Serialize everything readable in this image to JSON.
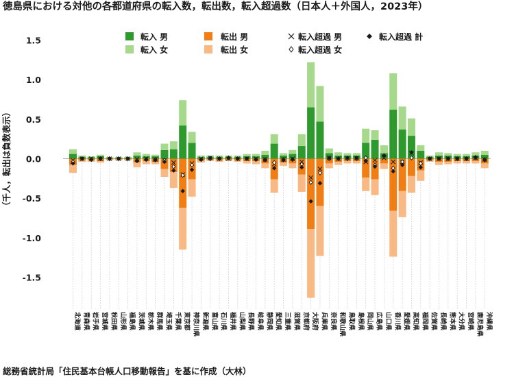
{
  "chart_data": {
    "type": "bar",
    "title": "徳島県における対他の各都道府県の転入数，転出数，転入超過数（日本人＋外国人，2023年）",
    "ylabel": "（千人，転出は負数表示）",
    "source": "総務省統計局「住民基本台帳人口移動報告」を基に作成（大林）",
    "ylim": [
      -1.75,
      1.55
    ],
    "yticks": [
      1.5,
      1.0,
      0.5,
      0.0,
      -0.5,
      -1.0,
      -1.5
    ],
    "ytick_labels": [
      "1.5",
      "1.0",
      "0.5",
      "0.0",
      "-0.5",
      "-1.0",
      "-1.5"
    ],
    "legend": {
      "in_male": "転入 男",
      "in_female": "転入 女",
      "out_male": "転出 男",
      "out_female": "転出 女",
      "net_male": "転入超過 男",
      "net_female": "転入超過 女",
      "net_total": "転入超過 計"
    },
    "colors": {
      "in_male": "#2e9a2e",
      "in_female": "#a6d98c",
      "out_male": "#f07e14",
      "out_female": "#f8b984",
      "zero_line": "#b0b0b0",
      "grid": "#c8c8c8"
    },
    "categories": [
      "北海道",
      "青森県",
      "岩手県",
      "宮城県",
      "秋田県",
      "山形県",
      "福島県",
      "茨城県",
      "栃木県",
      "群馬県",
      "埼玉県",
      "千葉県",
      "東京都",
      "神奈川県",
      "新潟県",
      "富山県",
      "石川県",
      "福井県",
      "山梨県",
      "長野県",
      "岐阜県",
      "静岡県",
      "愛知県",
      "三重県",
      "滋賀県",
      "京都府",
      "大阪府",
      "兵庫県",
      "奈良県",
      "和歌山県",
      "鳥取県",
      "島根県",
      "岡山県",
      "広島県",
      "山口県",
      "香川県",
      "愛媛県",
      "高知県",
      "福岡県",
      "佐賀県",
      "長崎県",
      "熊本県",
      "大分県",
      "宮崎県",
      "鹿児島県",
      "沖縄県"
    ],
    "series": [
      {
        "name": "転入 男",
        "values": [
          0.06,
          0.02,
          0.02,
          0.03,
          0.01,
          0.01,
          0.01,
          0.04,
          0.03,
          0.03,
          0.11,
          0.12,
          0.42,
          0.2,
          0.02,
          0.02,
          0.02,
          0.02,
          0.02,
          0.03,
          0.03,
          0.05,
          0.19,
          0.04,
          0.06,
          0.16,
          0.65,
          0.47,
          0.07,
          0.04,
          0.04,
          0.04,
          0.2,
          0.24,
          0.07,
          0.62,
          0.37,
          0.29,
          0.1,
          0.02,
          0.04,
          0.04,
          0.03,
          0.03,
          0.04,
          0.05
        ]
      },
      {
        "name": "転入 女",
        "values": [
          0.06,
          0.02,
          0.01,
          0.02,
          0.01,
          0.01,
          0.01,
          0.04,
          0.03,
          0.02,
          0.08,
          0.1,
          0.32,
          0.14,
          0.02,
          0.02,
          0.02,
          0.02,
          0.02,
          0.03,
          0.03,
          0.05,
          0.12,
          0.03,
          0.05,
          0.15,
          0.57,
          0.45,
          0.06,
          0.04,
          0.03,
          0.03,
          0.18,
          0.12,
          0.1,
          0.46,
          0.29,
          0.22,
          0.07,
          0.02,
          0.04,
          0.03,
          0.03,
          0.03,
          0.04,
          0.05
        ]
      },
      {
        "name": "転出 男",
        "values": [
          -0.08,
          -0.02,
          -0.02,
          -0.03,
          -0.01,
          -0.01,
          -0.01,
          -0.05,
          -0.03,
          -0.04,
          -0.13,
          -0.17,
          -0.62,
          -0.26,
          -0.02,
          -0.01,
          -0.02,
          -0.02,
          -0.02,
          -0.03,
          -0.03,
          -0.06,
          -0.26,
          -0.05,
          -0.06,
          -0.2,
          -0.89,
          -0.6,
          -0.06,
          -0.04,
          -0.03,
          -0.03,
          -0.24,
          -0.26,
          -0.06,
          -0.66,
          -0.41,
          -0.22,
          -0.15,
          -0.02,
          -0.04,
          -0.04,
          -0.03,
          -0.03,
          -0.03,
          -0.06
        ]
      },
      {
        "name": "転出 女",
        "values": [
          -0.1,
          -0.02,
          -0.02,
          -0.02,
          -0.01,
          -0.01,
          -0.01,
          -0.06,
          -0.04,
          -0.03,
          -0.1,
          -0.2,
          -0.53,
          -0.22,
          -0.03,
          -0.02,
          -0.02,
          -0.01,
          -0.02,
          -0.03,
          -0.04,
          -0.06,
          -0.17,
          -0.04,
          -0.06,
          -0.22,
          -0.87,
          -0.63,
          -0.06,
          -0.04,
          -0.03,
          -0.03,
          -0.17,
          -0.2,
          -0.07,
          -0.58,
          -0.33,
          -0.21,
          -0.13,
          -0.02,
          -0.04,
          -0.03,
          -0.03,
          -0.03,
          -0.03,
          -0.06
        ]
      },
      {
        "name": "転入超過 男",
        "values": [
          -0.02,
          0.0,
          0.0,
          0.0,
          0.0,
          0.0,
          0.0,
          -0.01,
          0.0,
          -0.01,
          -0.02,
          -0.05,
          -0.2,
          -0.06,
          0.0,
          0.01,
          0.0,
          0.0,
          0.0,
          0.0,
          0.0,
          -0.01,
          -0.07,
          -0.01,
          0.0,
          -0.04,
          -0.24,
          -0.13,
          0.01,
          0.0,
          0.01,
          0.01,
          -0.04,
          -0.02,
          0.01,
          -0.04,
          -0.04,
          0.07,
          -0.05,
          0.0,
          0.0,
          0.0,
          0.0,
          0.0,
          0.01,
          -0.01
        ]
      },
      {
        "name": "転入超過 女",
        "values": [
          -0.04,
          0.0,
          -0.01,
          0.0,
          0.0,
          0.0,
          0.0,
          -0.02,
          -0.01,
          -0.01,
          -0.02,
          -0.1,
          -0.21,
          -0.08,
          -0.01,
          0.0,
          0.0,
          0.01,
          0.0,
          0.0,
          -0.01,
          -0.01,
          -0.05,
          -0.01,
          -0.01,
          -0.07,
          -0.3,
          -0.18,
          0.0,
          0.0,
          0.0,
          0.0,
          0.01,
          -0.08,
          0.03,
          -0.12,
          -0.04,
          0.01,
          -0.06,
          0.0,
          0.0,
          0.0,
          0.0,
          0.0,
          0.01,
          -0.01
        ]
      },
      {
        "name": "転入超過 計",
        "values": [
          -0.06,
          0.0,
          -0.01,
          0.0,
          0.0,
          0.0,
          0.0,
          -0.03,
          -0.01,
          -0.02,
          -0.04,
          -0.15,
          -0.41,
          -0.14,
          -0.01,
          0.01,
          0.0,
          0.01,
          0.0,
          0.0,
          -0.01,
          -0.02,
          -0.12,
          -0.02,
          -0.01,
          -0.11,
          -0.54,
          -0.31,
          0.01,
          0.0,
          0.01,
          0.01,
          -0.03,
          -0.1,
          0.04,
          -0.16,
          -0.08,
          0.08,
          -0.11,
          0.0,
          0.0,
          0.0,
          0.0,
          0.0,
          0.02,
          -0.02
        ]
      }
    ]
  }
}
